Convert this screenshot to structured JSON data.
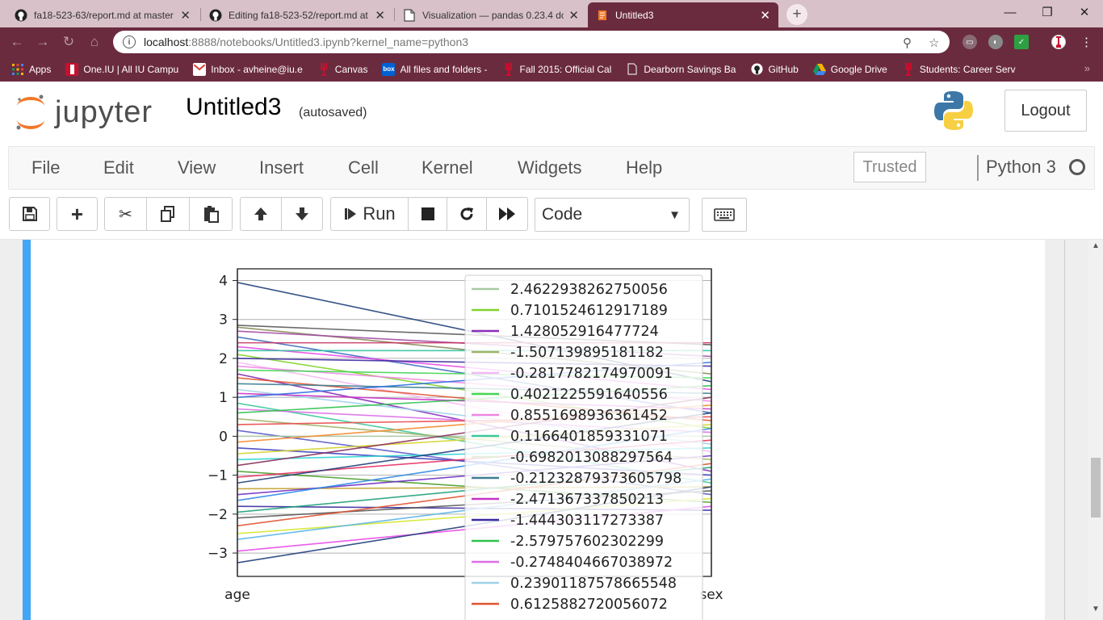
{
  "browser": {
    "tabs": [
      {
        "title": "fa18-523-63/report.md at master",
        "icon": "github-icon",
        "active": false
      },
      {
        "title": "Editing fa18-523-52/report.md at",
        "icon": "github-icon",
        "active": false
      },
      {
        "title": "Visualization — pandas 0.23.4 do",
        "icon": "document-icon",
        "active": false
      },
      {
        "title": "Untitled3",
        "icon": "jupyter-icon",
        "active": true
      }
    ],
    "url_host": "localhost",
    "url_path": ":8888/notebooks/Untitled3.ipynb?kernel_name=python3",
    "bookmarks": [
      {
        "label": "Apps",
        "icon": "apps-grid-icon"
      },
      {
        "label": "One.IU | All IU Campu",
        "icon": "iu-icon"
      },
      {
        "label": "Inbox - avheine@iu.e",
        "icon": "gmail-icon"
      },
      {
        "label": "Canvas",
        "icon": "iu-trident-icon"
      },
      {
        "label": "All files and folders -",
        "icon": "box-icon"
      },
      {
        "label": "Fall 2015: Official Cal",
        "icon": "iu-trident-icon"
      },
      {
        "label": "Dearborn Savings Ba",
        "icon": "document-icon"
      },
      {
        "label": "GitHub",
        "icon": "github-icon"
      },
      {
        "label": "Google Drive",
        "icon": "google-drive-icon"
      },
      {
        "label": "Students: Career Serv",
        "icon": "iu-trident-icon"
      }
    ],
    "bookmarks_more": "»"
  },
  "jupyter": {
    "logo_text": "jupyter",
    "notebook_title": "Untitled3",
    "autosave_status": "(autosaved)",
    "logout_label": "Logout",
    "menus": [
      "File",
      "Edit",
      "View",
      "Insert",
      "Cell",
      "Kernel",
      "Widgets",
      "Help"
    ],
    "trusted_label": "Trusted",
    "kernel_name": "Python 3",
    "run_label": "Run",
    "cell_type": "Code"
  },
  "chart_data": {
    "type": "line",
    "subtype": "parallel_coordinates",
    "categories": [
      "age",
      "sex"
    ],
    "yticks": [
      4,
      3,
      2,
      1,
      0,
      -1,
      -2,
      -3
    ],
    "ylim": [
      -3.6,
      4.3
    ],
    "title": "",
    "xlabel": "",
    "ylabel": "",
    "legend_position": "upper-right",
    "legend": [
      {
        "label": "2.4622938262750056",
        "color": "#a9c9a4"
      },
      {
        "label": "0.7101524612917189",
        "color": "#7fd32d"
      },
      {
        "label": "1.428052916477724",
        "color": "#8a2db8"
      },
      {
        "label": "-1.507139895181182",
        "color": "#9db368"
      },
      {
        "label": "-0.2817782174970091",
        "color": "#f5b8f5"
      },
      {
        "label": "0.4021225591640556",
        "color": "#44d654"
      },
      {
        "label": "0.8551698936361452",
        "color": "#ef86e3"
      },
      {
        "label": "0.1166401859331071",
        "color": "#3bc79b"
      },
      {
        "label": "-0.6982013088297564",
        "color": "#e8eedd"
      },
      {
        "label": "-0.21232879373605798",
        "color": "#3c7d91"
      },
      {
        "label": "-2.471367337850213",
        "color": "#c832c6"
      },
      {
        "label": "-1.444303117273387",
        "color": "#3a2ba0"
      },
      {
        "label": "-2.579757602302299",
        "color": "#2fc24e"
      },
      {
        "label": "-0.2748404667038972",
        "color": "#dc6ee8"
      },
      {
        "label": "0.23901187578665548",
        "color": "#9fd2e8"
      },
      {
        "label": "0.6125882720056072",
        "color": "#e0532f"
      }
    ],
    "series": [
      {
        "age": 3.95,
        "sex": 1.4,
        "color": "#1f3f7a"
      },
      {
        "age": 2.85,
        "sex": 2.35,
        "color": "#5a5a5a"
      },
      {
        "age": 2.8,
        "sex": 1.6,
        "color": "#8a8a5a"
      },
      {
        "age": 2.7,
        "sex": 2.05,
        "color": "#a34aa3"
      },
      {
        "age": 2.55,
        "sex": 0.6,
        "color": "#3f6fbf"
      },
      {
        "age": 2.4,
        "sex": 2.4,
        "color": "#c83264"
      },
      {
        "age": 2.3,
        "sex": 1.2,
        "color": "#e84ae8"
      },
      {
        "age": 2.2,
        "sex": 2.2,
        "color": "#2fc2a0"
      },
      {
        "age": 2.1,
        "sex": 0.2,
        "color": "#7fd32d"
      },
      {
        "age": 2.0,
        "sex": 1.8,
        "color": "#3a2ba0"
      },
      {
        "age": 1.9,
        "sex": -0.4,
        "color": "#f5b8f5"
      },
      {
        "age": 1.8,
        "sex": 0.9,
        "color": "#ef86e3"
      },
      {
        "age": 1.7,
        "sex": 1.5,
        "color": "#44d654"
      },
      {
        "age": 1.6,
        "sex": -0.9,
        "color": "#8a2db8"
      },
      {
        "age": 1.5,
        "sex": 0.4,
        "color": "#e0532f"
      },
      {
        "age": 1.35,
        "sex": 1.1,
        "color": "#3c7d91"
      },
      {
        "age": 1.2,
        "sex": -0.2,
        "color": "#9fd2e8"
      },
      {
        "age": 1.1,
        "sex": 0.7,
        "color": "#c832c6"
      },
      {
        "age": 1.0,
        "sex": 1.9,
        "color": "#2f6fe0"
      },
      {
        "age": 0.85,
        "sex": -1.2,
        "color": "#3bc79b"
      },
      {
        "age": 0.7,
        "sex": 0.1,
        "color": "#dc6ee8"
      },
      {
        "age": 0.6,
        "sex": 1.3,
        "color": "#2fc24e"
      },
      {
        "age": 0.45,
        "sex": -0.6,
        "color": "#9db368"
      },
      {
        "age": 0.3,
        "sex": 0.5,
        "color": "#e84a4a"
      },
      {
        "age": 0.15,
        "sex": -1.5,
        "color": "#5a5ac8"
      },
      {
        "age": 0.0,
        "sex": 0.0,
        "color": "#a9c9a4"
      },
      {
        "age": -0.15,
        "sex": 0.8,
        "color": "#f58a2d"
      },
      {
        "age": -0.3,
        "sex": -1.0,
        "color": "#3f3fbf"
      },
      {
        "age": -0.45,
        "sex": 0.3,
        "color": "#d4d42d"
      },
      {
        "age": -0.6,
        "sex": -0.3,
        "color": "#2dd4d4"
      },
      {
        "age": -0.75,
        "sex": 1.0,
        "color": "#8a2d5a"
      },
      {
        "age": -0.9,
        "sex": -1.7,
        "color": "#4a9e2d"
      },
      {
        "age": -1.05,
        "sex": -0.1,
        "color": "#e83264"
      },
      {
        "age": -1.2,
        "sex": 0.6,
        "color": "#1f3f7a"
      },
      {
        "age": -1.35,
        "sex": -1.3,
        "color": "#c2a02d"
      },
      {
        "age": -1.5,
        "sex": -0.5,
        "color": "#6f2dc2"
      },
      {
        "age": -1.65,
        "sex": 0.2,
        "color": "#2d8ae8"
      },
      {
        "age": -1.8,
        "sex": -1.9,
        "color": "#3a2ba0"
      },
      {
        "age": -1.95,
        "sex": -0.8,
        "color": "#1fa07a"
      },
      {
        "age": -2.1,
        "sex": -1.4,
        "color": "#5a5a5a"
      },
      {
        "age": -2.3,
        "sex": -0.7,
        "color": "#e0532f"
      },
      {
        "age": -2.5,
        "sex": -1.6,
        "color": "#d4e82d"
      },
      {
        "age": -2.65,
        "sex": -1.1,
        "color": "#5ab4e8"
      },
      {
        "age": -2.95,
        "sex": -1.8,
        "color": "#e84ae8"
      },
      {
        "age": -3.25,
        "sex": -1.3,
        "color": "#1f3f7a"
      }
    ]
  }
}
